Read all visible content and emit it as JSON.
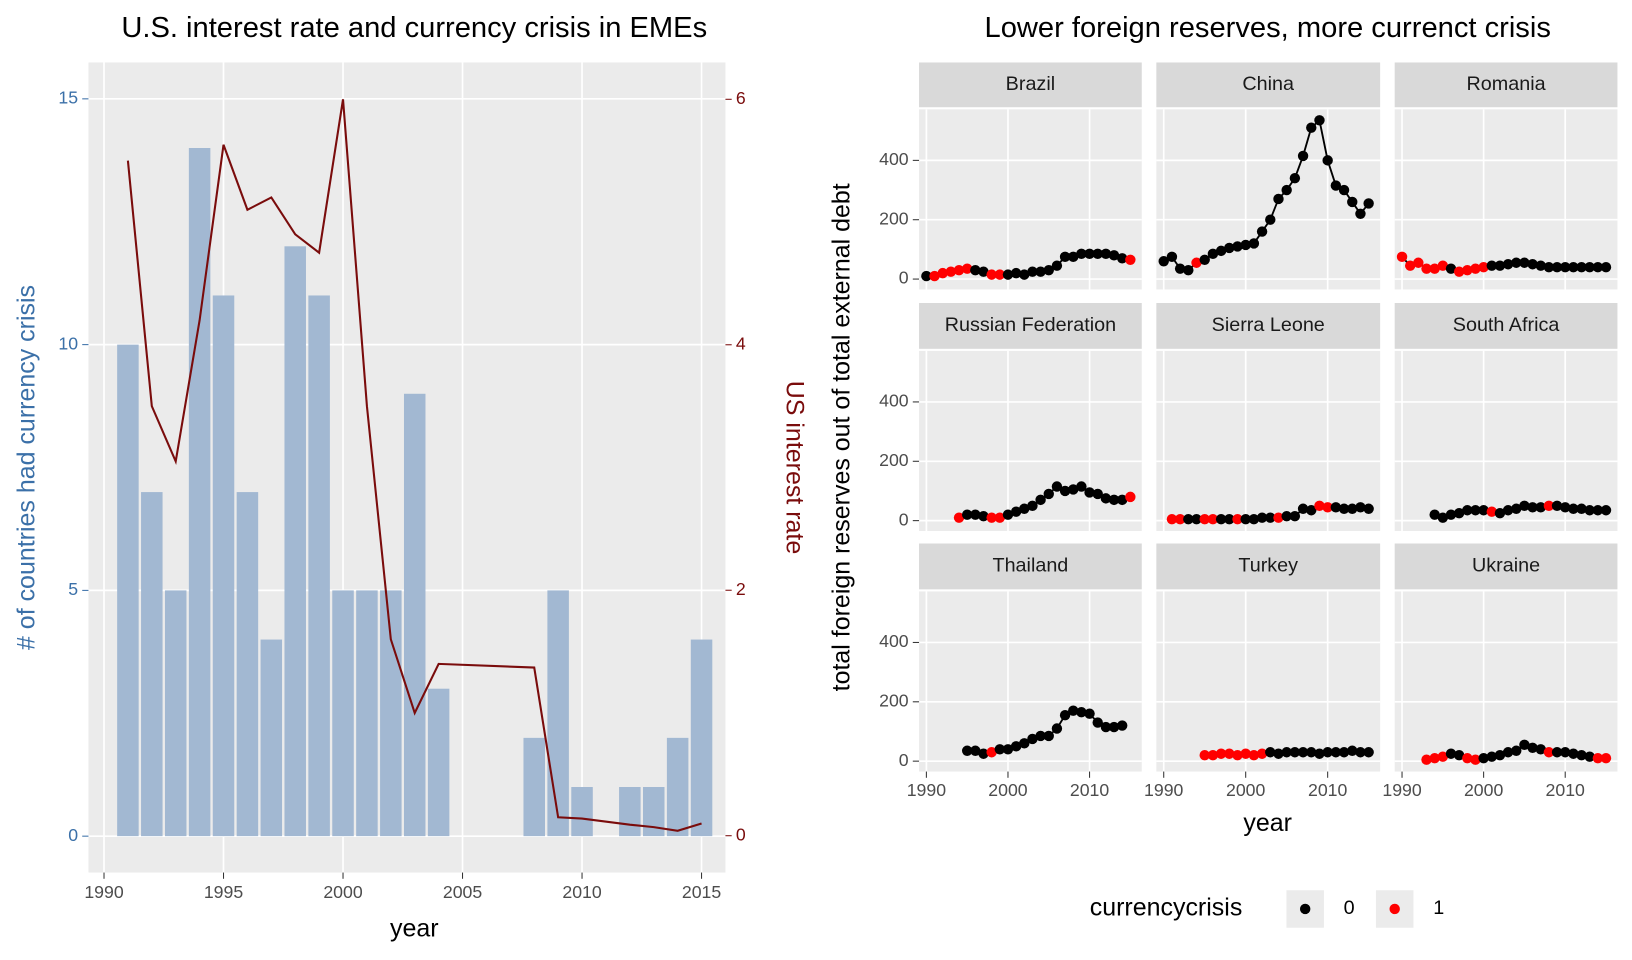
{
  "chart_data": [
    {
      "type": "bar",
      "title": "U.S. interest rate and currency crisis in EMEs",
      "xlabel": "year",
      "ylabel": "# of countries had currency crisis",
      "y2label": "US interest rate",
      "x": [
        1991,
        1992,
        1993,
        1994,
        1995,
        1996,
        1997,
        1998,
        1999,
        2000,
        2001,
        2002,
        2003,
        2004,
        2008,
        2009,
        2010,
        2012,
        2013,
        2014,
        2015
      ],
      "series": [
        {
          "type": "bar",
          "color": "#a2b8d2",
          "values": [
            10,
            7,
            5,
            14,
            11,
            7,
            4,
            12,
            11,
            5,
            5,
            5,
            9,
            3,
            2,
            5,
            1,
            1,
            1,
            2,
            4
          ]
        },
        {
          "type": "line",
          "axis": "y2",
          "color": "#7a0c0c",
          "values": [
            5.5,
            3.5,
            3.05,
            4.2,
            5.63,
            5.1,
            5.2,
            4.9,
            4.75,
            6.0,
            3.5,
            1.6,
            1.0,
            1.4,
            1.37,
            0.15,
            0.14,
            0.09,
            0.07,
            0.04,
            0.1
          ]
        }
      ],
      "xlim": [
        1989.35,
        2016.0
      ],
      "xticks": [
        1990,
        1995,
        2000,
        2005,
        2010,
        2015
      ],
      "ylim": [
        -0.74,
        15.74
      ],
      "yticks": [
        0,
        5,
        10,
        15
      ],
      "y2lim": [
        -0.3,
        6.3
      ],
      "y2ticks": [
        0,
        2,
        4,
        6
      ],
      "grid": true
    },
    {
      "type": "scatter",
      "title": "Lower foreign reserves, more currenct crisis",
      "xlabel": "year",
      "ylabel": "total foreign reserves out of total external debt",
      "xlim": [
        1989.1,
        2016.4
      ],
      "xticks": [
        1990,
        2000,
        2010
      ],
      "ylim": [
        -35,
        572
      ],
      "yticks": [
        0,
        200,
        400
      ],
      "grid": true,
      "line_color": "#000000",
      "legend": {
        "title": "currencycrisis",
        "labels": [
          "0",
          "1"
        ],
        "colors": [
          "#000000",
          "#ff0000"
        ],
        "position": "bottom"
      },
      "series": [
        {
          "name": "Brazil",
          "x": [
            1990,
            1991,
            1992,
            1993,
            1994,
            1995,
            1996,
            1997,
            1998,
            1999,
            2000,
            2001,
            2002,
            2003,
            2004,
            2005,
            2006,
            2007,
            2008,
            2009,
            2010,
            2011,
            2012,
            2013,
            2014,
            2015
          ],
          "values": [
            10,
            10,
            20,
            25,
            30,
            35,
            30,
            25,
            15,
            15,
            15,
            20,
            15,
            25,
            25,
            30,
            45,
            75,
            75,
            85,
            85,
            85,
            85,
            80,
            70,
            65
          ],
          "crisis": [
            0,
            1,
            1,
            1,
            1,
            1,
            0,
            0,
            1,
            1,
            0,
            0,
            0,
            0,
            0,
            0,
            0,
            0,
            0,
            0,
            0,
            0,
            0,
            0,
            0,
            1
          ]
        },
        {
          "name": "China",
          "x": [
            1990,
            1991,
            1992,
            1993,
            1994,
            1995,
            1996,
            1997,
            1998,
            1999,
            2000,
            2001,
            2002,
            2003,
            2004,
            2005,
            2006,
            2007,
            2008,
            2009,
            2010,
            2011,
            2012,
            2013,
            2014,
            2015
          ],
          "values": [
            60,
            75,
            35,
            30,
            55,
            65,
            85,
            95,
            105,
            110,
            115,
            120,
            160,
            200,
            270,
            300,
            340,
            415,
            510,
            535,
            400,
            315,
            300,
            260,
            220,
            255
          ],
          "crisis": [
            0,
            0,
            0,
            0,
            1,
            0,
            0,
            0,
            0,
            0,
            0,
            0,
            0,
            0,
            0,
            0,
            0,
            0,
            0,
            0,
            0,
            0,
            0,
            0,
            0,
            0
          ]
        },
        {
          "name": "Romania",
          "x": [
            1990,
            1991,
            1992,
            1993,
            1994,
            1995,
            1996,
            1997,
            1998,
            1999,
            2000,
            2001,
            2002,
            2003,
            2004,
            2005,
            2006,
            2007,
            2008,
            2009,
            2010,
            2011,
            2012,
            2013,
            2014,
            2015
          ],
          "values": [
            75,
            45,
            55,
            35,
            35,
            45,
            35,
            25,
            30,
            35,
            40,
            45,
            45,
            50,
            55,
            55,
            50,
            45,
            40,
            40,
            40,
            40,
            40,
            40,
            40,
            40
          ],
          "crisis": [
            1,
            1,
            1,
            1,
            1,
            1,
            0,
            1,
            1,
            1,
            1,
            0,
            0,
            0,
            0,
            0,
            0,
            0,
            0,
            0,
            0,
            0,
            0,
            0,
            0,
            0
          ]
        },
        {
          "name": "Russian Federation",
          "x": [
            1994,
            1995,
            1996,
            1997,
            1998,
            1999,
            2000,
            2001,
            2002,
            2003,
            2004,
            2005,
            2006,
            2007,
            2008,
            2009,
            2010,
            2011,
            2012,
            2013,
            2014,
            2015
          ],
          "values": [
            10,
            20,
            20,
            15,
            10,
            10,
            20,
            30,
            40,
            50,
            70,
            90,
            115,
            100,
            105,
            115,
            95,
            90,
            75,
            70,
            70,
            80
          ],
          "crisis": [
            1,
            0,
            0,
            0,
            1,
            1,
            0,
            0,
            0,
            0,
            0,
            0,
            0,
            0,
            0,
            0,
            0,
            0,
            0,
            0,
            0,
            1
          ]
        },
        {
          "name": "Sierra Leone",
          "x": [
            1991,
            1992,
            1993,
            1994,
            1995,
            1996,
            1997,
            1998,
            1999,
            2000,
            2001,
            2002,
            2003,
            2004,
            2005,
            2006,
            2007,
            2008,
            2009,
            2010,
            2011,
            2012,
            2013,
            2014,
            2015
          ],
          "values": [
            5,
            5,
            5,
            5,
            5,
            5,
            5,
            5,
            5,
            5,
            5,
            10,
            10,
            10,
            15,
            15,
            40,
            35,
            50,
            45,
            45,
            40,
            40,
            45,
            40
          ],
          "crisis": [
            1,
            1,
            0,
            0,
            1,
            1,
            0,
            0,
            1,
            0,
            0,
            0,
            0,
            1,
            0,
            0,
            0,
            0,
            1,
            1,
            0,
            0,
            0,
            0,
            0
          ]
        },
        {
          "name": "South Africa",
          "x": [
            1994,
            1995,
            1996,
            1997,
            1998,
            1999,
            2000,
            2001,
            2002,
            2003,
            2004,
            2005,
            2006,
            2007,
            2008,
            2009,
            2010,
            2011,
            2012,
            2013,
            2014,
            2015
          ],
          "values": [
            20,
            10,
            20,
            25,
            35,
            35,
            35,
            30,
            25,
            35,
            40,
            50,
            45,
            45,
            50,
            50,
            45,
            40,
            40,
            35,
            35,
            35
          ],
          "crisis": [
            0,
            0,
            0,
            0,
            0,
            0,
            0,
            1,
            0,
            0,
            0,
            0,
            0,
            0,
            1,
            0,
            0,
            0,
            0,
            0,
            0,
            0
          ]
        },
        {
          "name": "Thailand",
          "x": [
            1995,
            1996,
            1997,
            1998,
            1999,
            2000,
            2001,
            2002,
            2003,
            2004,
            2005,
            2006,
            2007,
            2008,
            2009,
            2010,
            2011,
            2012,
            2013,
            2014
          ],
          "values": [
            35,
            35,
            25,
            30,
            40,
            40,
            50,
            60,
            75,
            85,
            85,
            110,
            155,
            170,
            165,
            160,
            130,
            115,
            115,
            120
          ],
          "crisis": [
            0,
            0,
            0,
            1,
            0,
            0,
            0,
            0,
            0,
            0,
            0,
            0,
            0,
            0,
            0,
            0,
            0,
            0,
            0,
            0
          ]
        },
        {
          "name": "Turkey",
          "x": [
            1995,
            1996,
            1997,
            1998,
            1999,
            2000,
            2001,
            2002,
            2003,
            2004,
            2005,
            2006,
            2007,
            2008,
            2009,
            2010,
            2011,
            2012,
            2013,
            2014,
            2015
          ],
          "values": [
            20,
            20,
            25,
            25,
            20,
            25,
            20,
            25,
            30,
            25,
            30,
            30,
            30,
            30,
            25,
            30,
            30,
            30,
            35,
            30,
            30
          ],
          "crisis": [
            1,
            1,
            1,
            1,
            1,
            1,
            1,
            1,
            0,
            0,
            0,
            0,
            0,
            0,
            0,
            0,
            0,
            0,
            0,
            0,
            0
          ]
        },
        {
          "name": "Ukraine",
          "x": [
            1993,
            1994,
            1995,
            1996,
            1997,
            1998,
            1999,
            2000,
            2001,
            2002,
            2003,
            2004,
            2005,
            2006,
            2007,
            2008,
            2009,
            2010,
            2011,
            2012,
            2013,
            2014,
            2015
          ],
          "values": [
            5,
            10,
            15,
            25,
            20,
            10,
            5,
            10,
            15,
            20,
            30,
            35,
            55,
            45,
            40,
            30,
            30,
            30,
            25,
            20,
            15,
            10,
            10
          ],
          "crisis": [
            1,
            1,
            1,
            0,
            0,
            1,
            1,
            0,
            0,
            0,
            0,
            0,
            0,
            0,
            0,
            1,
            0,
            0,
            0,
            0,
            0,
            1,
            1
          ]
        }
      ]
    }
  ]
}
